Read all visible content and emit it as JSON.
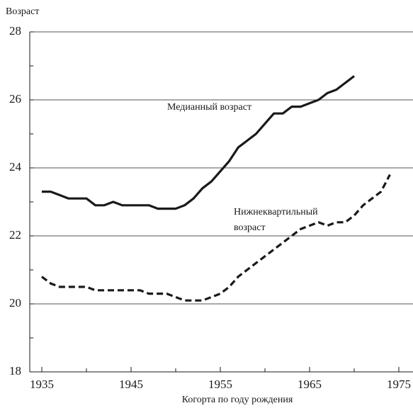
{
  "chart_data": {
    "type": "line",
    "ylabel": "Возраст",
    "xlabel": "Когорта по году рождения",
    "annotations": [
      "Медианный возраст",
      "Нижнеквартильный",
      "возраст"
    ],
    "x": [
      1935,
      1936,
      1937,
      1938,
      1939,
      1940,
      1941,
      1942,
      1943,
      1944,
      1945,
      1946,
      1947,
      1948,
      1949,
      1950,
      1951,
      1952,
      1953,
      1954,
      1955,
      1956,
      1957,
      1958,
      1959,
      1960,
      1961,
      1962,
      1963,
      1964,
      1965,
      1966,
      1967,
      1968,
      1969,
      1970,
      1971,
      1972,
      1973,
      1974
    ],
    "series": [
      {
        "name": "Медианный возраст",
        "color": "#1a1a1a",
        "style": "solid",
        "values": [
          23.3,
          23.3,
          23.2,
          23.1,
          23.1,
          23.1,
          22.9,
          22.9,
          23.0,
          22.9,
          22.9,
          22.9,
          22.9,
          22.8,
          22.8,
          22.8,
          22.9,
          23.1,
          23.4,
          23.6,
          23.9,
          24.2,
          24.6,
          24.8,
          25.0,
          25.3,
          25.6,
          25.6,
          25.8,
          25.8,
          25.9,
          26.0,
          26.2,
          26.3,
          26.5,
          26.7,
          null,
          null,
          null,
          null
        ]
      },
      {
        "name": "Нижнеквартильный возраст",
        "color": "#1a1a1a",
        "style": "dashed",
        "values": [
          20.8,
          20.6,
          20.5,
          20.5,
          20.5,
          20.5,
          20.4,
          20.4,
          20.4,
          20.4,
          20.4,
          20.4,
          20.3,
          20.3,
          20.3,
          20.2,
          20.1,
          20.1,
          20.1,
          20.2,
          20.3,
          20.5,
          20.8,
          21.0,
          21.2,
          21.4,
          21.6,
          21.8,
          22.0,
          22.2,
          22.3,
          22.4,
          22.3,
          22.4,
          22.4,
          22.6,
          22.9,
          23.1,
          23.3,
          23.8
        ]
      }
    ],
    "xlim": [
      1935,
      1975
    ],
    "xticks": [
      1935,
      1945,
      1955,
      1965,
      1975
    ],
    "xminorticks": [
      1940,
      1950,
      1960,
      1970
    ],
    "ylim": [
      18,
      28
    ],
    "yticks": [
      18,
      20,
      22,
      24,
      26,
      28
    ],
    "yminorticks": [
      19,
      21,
      23,
      25,
      27
    ],
    "grid": true
  }
}
